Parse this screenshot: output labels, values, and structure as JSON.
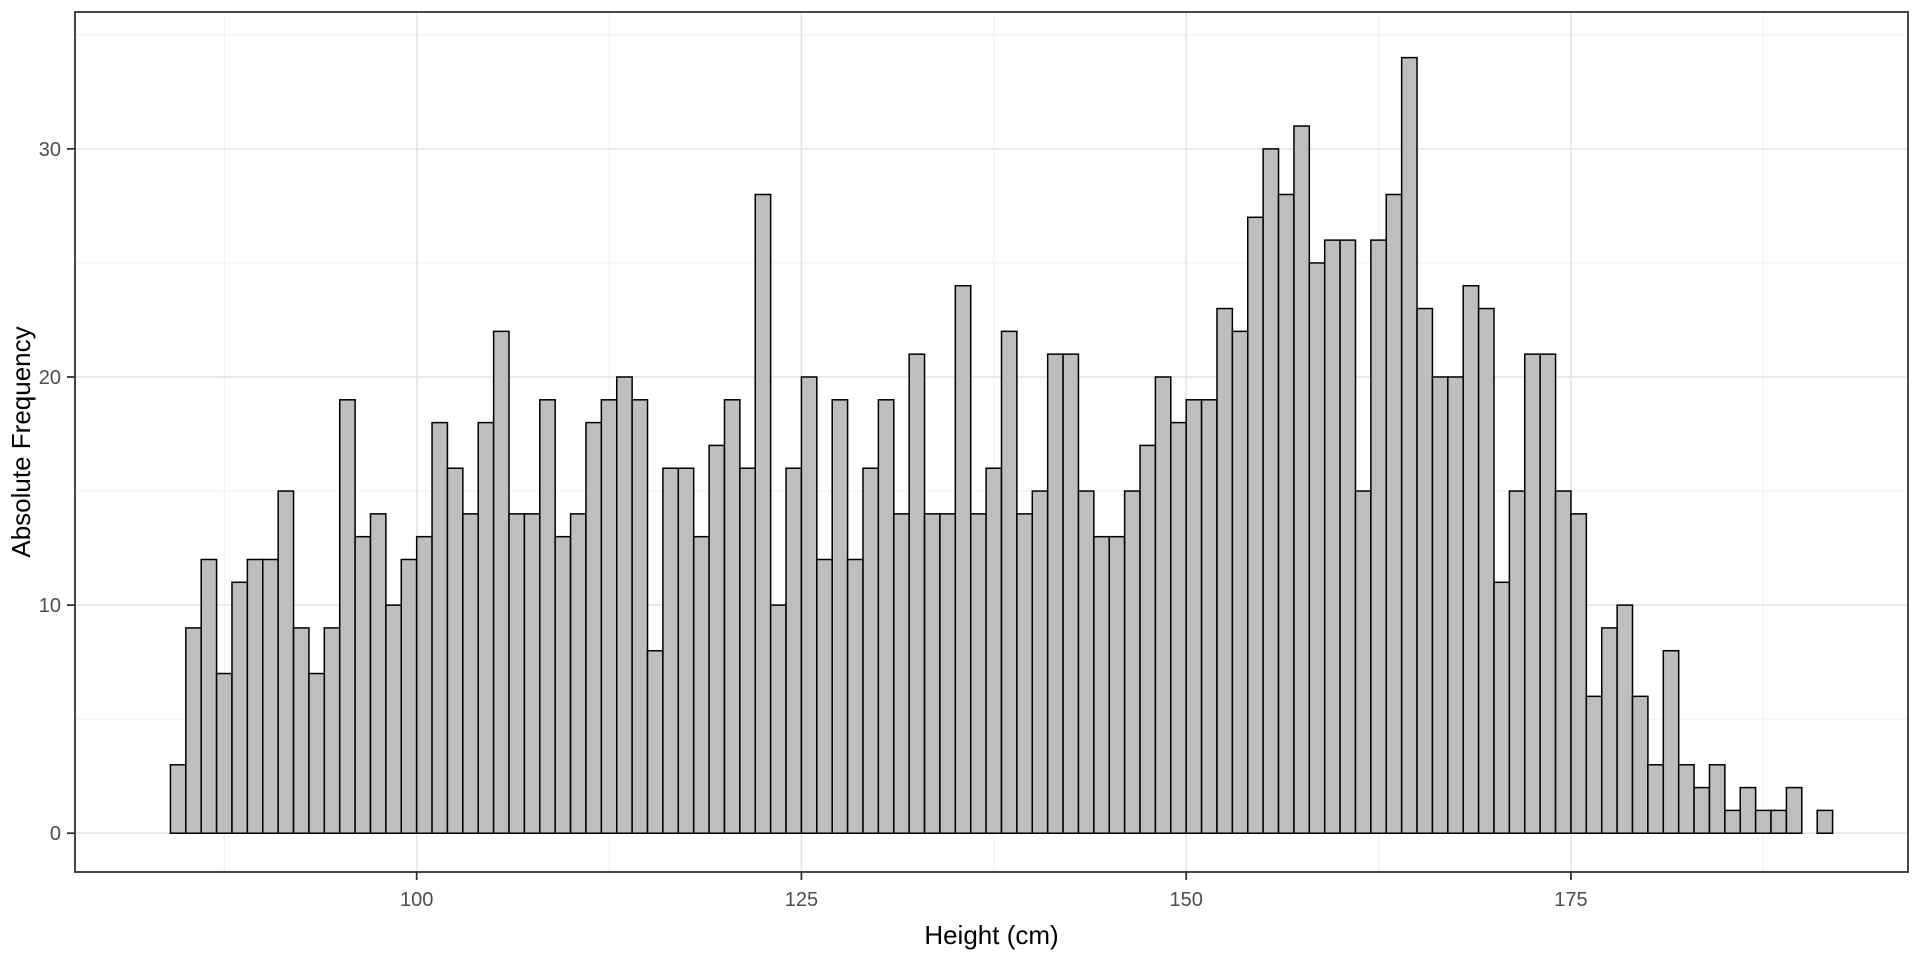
{
  "chart_data": {
    "type": "bar",
    "subtype": "histogram",
    "title": "",
    "xlabel": "Height (cm)",
    "ylabel": "Absolute Frequency",
    "legend": "none",
    "grid": "on",
    "bins": {
      "start": 84,
      "width": 1,
      "counts": [
        3,
        9,
        12,
        7,
        11,
        12,
        12,
        15,
        9,
        7,
        9,
        19,
        13,
        14,
        10,
        12,
        13,
        18,
        16,
        14,
        18,
        22,
        14,
        14,
        19,
        13,
        14,
        18,
        19,
        20,
        19,
        8,
        16,
        16,
        13,
        17,
        19,
        16,
        28,
        10,
        16,
        20,
        12,
        19,
        12,
        16,
        19,
        14,
        21,
        14,
        14,
        24,
        14,
        16,
        22,
        14,
        15,
        21,
        21,
        15,
        13,
        13,
        15,
        17,
        20,
        18,
        19,
        19,
        23,
        22,
        27,
        30,
        28,
        31,
        25,
        26,
        26,
        15,
        26,
        28,
        34,
        23,
        20,
        20,
        24,
        23,
        11,
        15,
        21,
        21,
        15,
        14,
        6,
        9,
        10,
        6,
        3,
        8,
        3,
        2,
        3,
        1,
        2,
        1,
        1,
        2,
        0,
        1
      ]
    },
    "x_ticks": [
      100,
      125,
      150,
      175
    ],
    "x_minor_gridlines": [
      87.5,
      112.5,
      137.5,
      162.5,
      187.5
    ],
    "y_ticks": [
      0,
      10,
      20,
      30
    ],
    "y_minor_gridlines": [
      5,
      15,
      25,
      35
    ],
    "xlim": [
      77.8,
      196.9
    ],
    "ylim": [
      -1.7,
      36.0
    ],
    "max_count": 34
  },
  "colors": {
    "background": "#ffffff",
    "panel_background": "#ffffff",
    "bar_fill": "#bebebe",
    "bar_stroke": "#000000",
    "grid_major": "#e4e4e4",
    "grid_minor": "#f2f2f2",
    "panel_border": "#333333",
    "tick_mark": "#333333",
    "tick_label": "#4d4d4d",
    "axis_title": "#000000"
  }
}
